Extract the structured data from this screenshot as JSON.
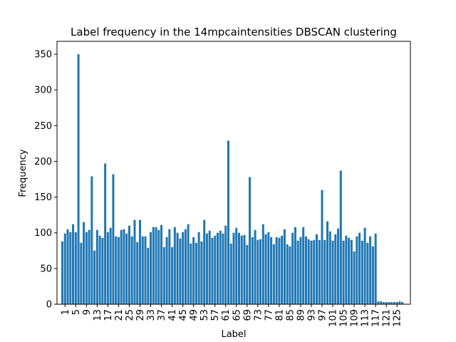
{
  "chart_data": {
    "type": "bar",
    "title": "Label frequency in the 14mpcaintensities DBSCAN clustering",
    "xlabel": "Label",
    "ylabel": "Frequency",
    "ylim": [
      0,
      368
    ],
    "xlim": [
      -2,
      130
    ],
    "bar_color": "#1f77b4",
    "x_ticks": [
      1,
      5,
      9,
      13,
      17,
      21,
      25,
      29,
      33,
      37,
      41,
      45,
      49,
      53,
      57,
      61,
      65,
      69,
      73,
      77,
      81,
      85,
      89,
      93,
      97,
      101,
      105,
      109,
      113,
      117,
      121,
      125
    ],
    "y_ticks": [
      0,
      50,
      100,
      150,
      200,
      250,
      300,
      350
    ],
    "categories": [
      0,
      1,
      2,
      3,
      4,
      5,
      6,
      7,
      8,
      9,
      10,
      11,
      12,
      13,
      14,
      15,
      16,
      17,
      18,
      19,
      20,
      21,
      22,
      23,
      24,
      25,
      26,
      27,
      28,
      29,
      30,
      31,
      32,
      33,
      34,
      35,
      36,
      37,
      38,
      39,
      40,
      41,
      42,
      43,
      44,
      45,
      46,
      47,
      48,
      49,
      50,
      51,
      52,
      53,
      54,
      55,
      56,
      57,
      58,
      59,
      60,
      61,
      62,
      63,
      64,
      65,
      66,
      67,
      68,
      69,
      70,
      71,
      72,
      73,
      74,
      75,
      76,
      77,
      78,
      79,
      80,
      81,
      82,
      83,
      84,
      85,
      86,
      87,
      88,
      89,
      90,
      91,
      92,
      93,
      94,
      95,
      96,
      97,
      98,
      99,
      100,
      101,
      102,
      103,
      104,
      105,
      106,
      107,
      108,
      109,
      110,
      111,
      112,
      113,
      114,
      115,
      116,
      117,
      118,
      119,
      120,
      121,
      122,
      123,
      124,
      125,
      126,
      127
    ],
    "values": [
      88,
      99,
      105,
      101,
      112,
      101,
      350,
      86,
      115,
      101,
      104,
      179,
      75,
      104,
      96,
      93,
      197,
      101,
      107,
      182,
      95,
      94,
      104,
      105,
      99,
      110,
      95,
      118,
      87,
      118,
      95,
      95,
      79,
      101,
      108,
      108,
      104,
      111,
      80,
      94,
      105,
      80,
      108,
      100,
      92,
      101,
      105,
      112,
      85,
      94,
      86,
      101,
      88,
      118,
      99,
      103,
      93,
      96,
      100,
      103,
      99,
      110,
      229,
      85,
      100,
      107,
      100,
      96,
      97,
      83,
      178,
      94,
      104,
      90,
      91,
      112,
      98,
      101,
      94,
      84,
      94,
      93,
      96,
      105,
      84,
      81,
      100,
      108,
      89,
      94,
      108,
      95,
      91,
      89,
      90,
      98,
      90,
      160,
      90,
      116,
      102,
      89,
      98,
      106,
      187,
      89,
      96,
      93,
      90,
      74,
      95,
      100,
      89,
      107,
      86,
      95,
      81,
      99,
      4,
      4,
      3,
      3,
      3,
      3,
      3,
      3,
      4,
      3
    ]
  }
}
